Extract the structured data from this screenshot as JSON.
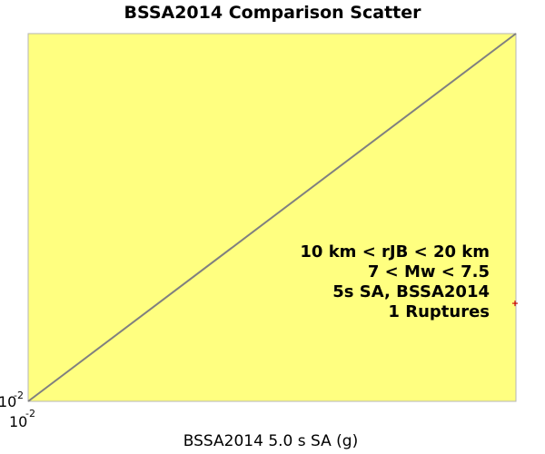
{
  "chart_data": {
    "type": "scatter",
    "title": "BSSA2014 Comparison Scatter",
    "xlabel": "BSSA2014 5.0 s SA (g)",
    "ylabel": "",
    "x_scale": "log",
    "y_scale": "log",
    "xlim": [
      0.01,
      0.026
    ],
    "ylim": [
      0.01,
      0.026
    ],
    "x_tick_labels": [
      {
        "base": "10",
        "exp": "-2",
        "value": 0.01
      }
    ],
    "y_tick_labels": [
      {
        "base": "10",
        "exp": "-2",
        "value": 0.01
      }
    ],
    "reference_line": {
      "x": [
        0.01,
        0.026
      ],
      "y": [
        0.01,
        0.026
      ],
      "color": "#808080"
    },
    "points": [
      {
        "x": 0.026,
        "y": 0.0129,
        "color": "#cc0000"
      }
    ],
    "annotation": [
      "10 km < rJB < 20 km",
      "7 < Mw < 7.5",
      "5s SA, BSSA2014",
      "1 Ruptures"
    ],
    "plot_background": "#ffff80",
    "grid": false,
    "legend": "none"
  }
}
